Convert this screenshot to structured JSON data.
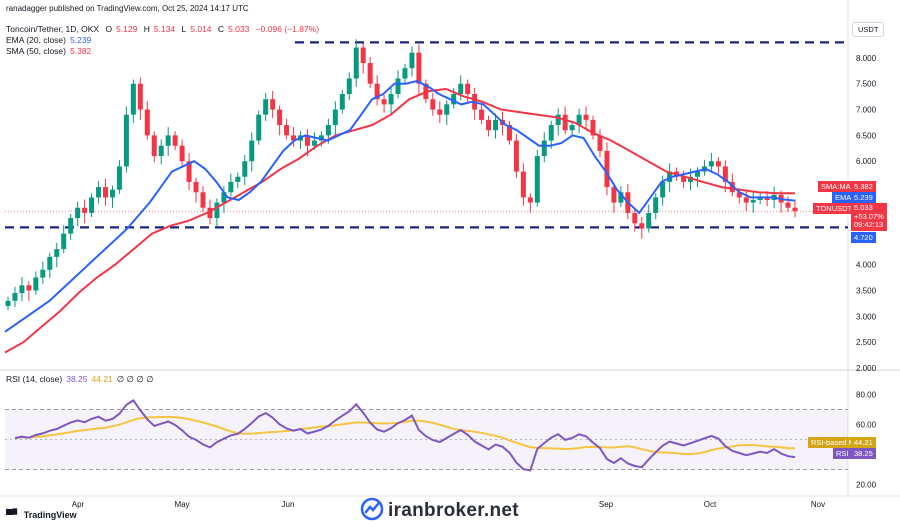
{
  "header": {
    "publisher": "ranadagger published on TradingView.com, Oct 25, 2024 14:17 UTC",
    "symbol": "Toncoin/Tether, 1D, OKX",
    "ohlc": {
      "o_label": "O",
      "o": "5.129",
      "h_label": "H",
      "h": "5.134",
      "l_label": "L",
      "l": "5.014",
      "c_label": "C",
      "c": "5.033",
      "change": "−0.096 (−1.87%)"
    },
    "ema_label": "EMA (20, close)",
    "ema_value": "5.239",
    "sma_label": "SMA (50, close)",
    "sma_value": "5.382",
    "rsi_label": "RSI (14, close)",
    "rsi_value": "38.25",
    "rsi_ma_value": "44.21",
    "rsi_extra": "∅ ∅ ∅ ∅"
  },
  "currency_button": "USDT",
  "price_tags": {
    "sma": {
      "label": "SMA:MA",
      "value": "5.382",
      "color": "#f23645"
    },
    "ema": {
      "label": "EMA",
      "value": "5.239",
      "color": "#2962ff"
    },
    "symbol": {
      "label": "TONUSDT",
      "value": "5.033",
      "change": "+53.07%",
      "countdown": "09:42:13",
      "color": "#f23645"
    },
    "support": {
      "value": "4.720",
      "color": "#2962ff"
    },
    "rsi_ma": {
      "label": "RSI-based MA",
      "value": "44.21",
      "color": "#d4a514"
    },
    "rsi": {
      "label": "RSI",
      "value": "38.25",
      "color": "#7e57c2"
    }
  },
  "watermark": "iranbroker.net",
  "tv_logo": "TradingView",
  "chart_data": {
    "type": "candlestick",
    "y_axis": {
      "ticks": [
        "8.000",
        "7.500",
        "7.000",
        "6.500",
        "6.000",
        "5.500",
        "5.000",
        "4.500",
        "4.000",
        "3.500",
        "3.000",
        "2.500",
        "2.000"
      ],
      "range": [
        2.0,
        8.5
      ]
    },
    "x_axis": {
      "ticks": [
        "Apr",
        "May",
        "Jun",
        "Sep",
        "Oct",
        "Nov"
      ]
    },
    "horizontal_levels": [
      8.3,
      4.72
    ],
    "closes": [
      3.3,
      3.45,
      3.6,
      3.5,
      3.75,
      3.9,
      4.15,
      4.3,
      4.6,
      4.9,
      5.1,
      5.0,
      5.3,
      5.5,
      5.3,
      5.45,
      5.9,
      6.9,
      7.5,
      7.0,
      6.5,
      6.1,
      6.3,
      6.5,
      6.3,
      6.0,
      5.6,
      5.4,
      5.1,
      4.9,
      5.2,
      5.4,
      5.6,
      5.7,
      6.0,
      6.4,
      6.9,
      7.2,
      7.0,
      6.7,
      6.5,
      6.4,
      6.5,
      6.3,
      6.4,
      6.5,
      6.7,
      7.0,
      7.3,
      7.6,
      8.2,
      7.9,
      7.5,
      7.2,
      7.1,
      7.3,
      7.6,
      7.8,
      8.1,
      7.5,
      7.2,
      7.0,
      6.9,
      7.1,
      7.3,
      7.5,
      7.3,
      7.0,
      6.8,
      6.6,
      6.8,
      6.7,
      6.4,
      5.8,
      5.3,
      5.2,
      6.1,
      6.4,
      6.7,
      6.9,
      6.6,
      6.7,
      6.9,
      6.8,
      6.5,
      6.2,
      5.5,
      5.2,
      5.4,
      5.0,
      4.8,
      4.7,
      5.0,
      5.3,
      5.6,
      5.8,
      5.7,
      5.6,
      5.7,
      5.8,
      5.9,
      6.0,
      5.9,
      5.6,
      5.4,
      5.3,
      5.2,
      5.25,
      5.3,
      5.25,
      5.35,
      5.2,
      5.1,
      5.033
    ],
    "ema_20": {
      "name": "EMA (20, close)",
      "values": [
        2.7,
        2.85,
        3.0,
        3.15,
        3.3,
        3.5,
        3.7,
        3.9,
        4.1,
        4.3,
        4.5,
        4.7,
        4.95,
        5.2,
        5.5,
        5.8,
        5.9,
        6.0,
        5.85,
        5.6,
        5.3,
        5.25,
        5.4,
        5.6,
        5.9,
        6.2,
        6.4,
        6.5,
        6.45,
        6.4,
        6.5,
        6.6,
        6.9,
        7.2,
        7.3,
        7.5,
        7.5,
        7.55,
        7.45,
        7.3,
        7.2,
        7.1,
        7.15,
        7.1,
        6.9,
        6.7,
        6.6,
        6.45,
        6.3,
        6.3,
        6.35,
        6.5,
        6.45,
        6.1,
        5.8,
        5.45,
        5.2,
        5.0,
        5.3,
        5.6,
        5.7,
        5.75,
        5.8,
        5.85,
        5.75,
        5.6,
        5.4,
        5.3,
        5.3,
        5.3,
        5.26,
        5.239
      ]
    },
    "sma_50": {
      "name": "SMA (50, close)",
      "values": [
        2.3,
        2.5,
        2.8,
        3.1,
        3.45,
        3.75,
        4.0,
        4.3,
        4.6,
        4.75,
        4.85,
        5.0,
        5.2,
        5.4,
        5.6,
        5.85,
        6.05,
        6.3,
        6.5,
        6.6,
        6.7,
        6.9,
        7.2,
        7.35,
        7.4,
        7.25,
        7.15,
        7.0,
        6.95,
        6.9,
        6.85,
        6.75,
        6.55,
        6.4,
        6.2,
        6.0,
        5.8,
        5.7,
        5.6,
        5.5,
        5.45,
        5.4,
        5.38,
        5.382
      ]
    },
    "rsi": {
      "name": "RSI (14, close)",
      "range": [
        15,
        95
      ],
      "ticks": [
        "80.00",
        "60.00",
        "40.00",
        "20.00"
      ],
      "bands": [
        70,
        30
      ],
      "mid": 50,
      "last": 38.25,
      "ma_last": 44.21
    }
  }
}
